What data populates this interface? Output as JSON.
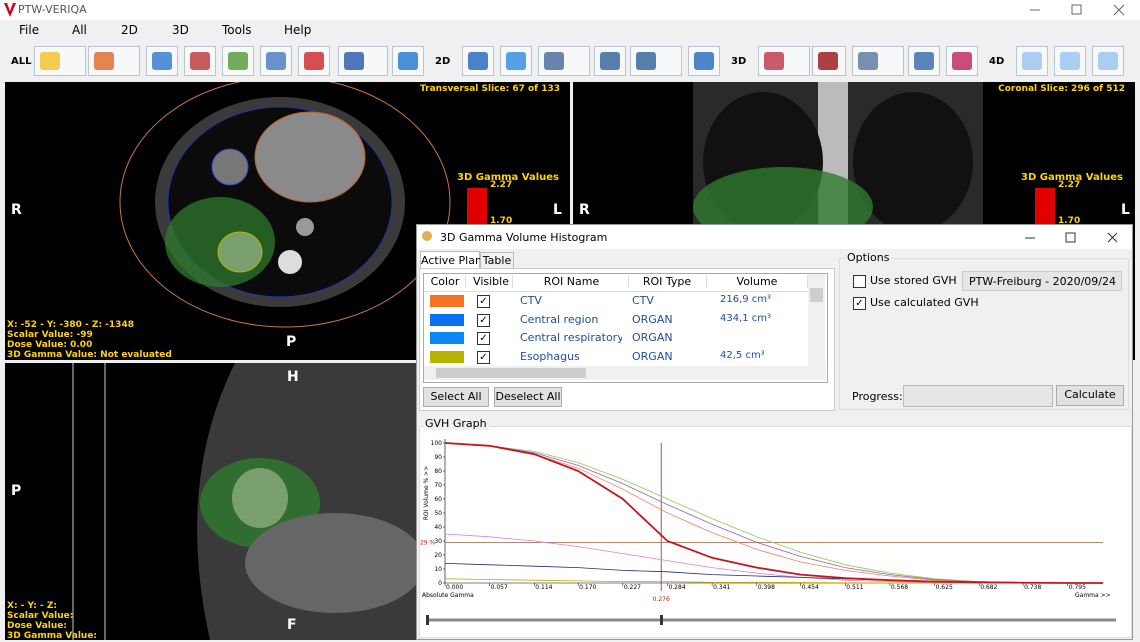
{
  "window": {
    "title": "PTW-VERIQA"
  },
  "menu": [
    "File",
    "All",
    "2D",
    "3D",
    "Tools",
    "Help"
  ],
  "toolbar": {
    "labels": [
      "ALL",
      "2D",
      "3D",
      "4D"
    ]
  },
  "viewers": [
    {
      "slice": "Transversal Slice: 67 of 133",
      "gamma_title": "3D Gamma Values",
      "gamma_max": "2.27",
      "gamma_mid": "1.70",
      "orientation": [
        "R",
        "L",
        "P"
      ],
      "info": [
        "X: -52 - Y: -380 - Z: -1348",
        "Scalar Value: -99",
        "Dose Value: 0.00",
        "3D Gamma Value: Not evaluated"
      ]
    },
    {
      "slice": "Coronal Slice: 296 of 512",
      "gamma_title": "3D Gamma Values",
      "gamma_max": "2.27",
      "gamma_mid": "1.70",
      "orientation": [
        "R",
        "L"
      ]
    },
    {
      "orientation": [
        "H",
        "P",
        "F"
      ],
      "info": [
        "X: - Y: - Z:",
        "Scalar Value:",
        "Dose Value:",
        "3D Gamma Value:"
      ]
    }
  ],
  "dialog": {
    "title": "3D Gamma Volume Histogram",
    "tabs": [
      "Active Plan",
      "Table"
    ],
    "table": {
      "columns": [
        "Color",
        "Visible",
        "ROI Name",
        "ROI Type",
        "Volume"
      ],
      "rows": [
        {
          "color": "#f47321",
          "visible": true,
          "name": "CTV",
          "type": "CTV",
          "volume": "216,9 cm³"
        },
        {
          "color": "#0a70f0",
          "visible": true,
          "name": "Central region",
          "type": "ORGAN",
          "volume": "434,1 cm³"
        },
        {
          "color": "#0a86f5",
          "visible": true,
          "name": "Central respiratory tra",
          "type": "ORGAN"
        },
        {
          "color": "#b5b500",
          "visible": true,
          "name": "Esophagus",
          "type": "ORGAN",
          "volume": "42,5 cm³"
        }
      ]
    },
    "buttons": [
      "Select All",
      "Deselect All"
    ],
    "options": {
      "title": "Options",
      "use_stored": {
        "label": "Use stored GVH",
        "checked": false
      },
      "source": "PTW-Freiburg - 2020/09/24",
      "use_calculated": {
        "label": "Use calculated GVH",
        "checked": true
      },
      "progress": "Progress:",
      "calculate": "Calculate"
    },
    "graph_title": "GVH Graph"
  },
  "chart_data": {
    "type": "line",
    "y_label": "ROI Volume % >>",
    "x_label": "Absolute Gamma",
    "x_end_label": "Gamma >>",
    "xlim": [
      0,
      0.84
    ],
    "ylim": [
      0,
      100
    ],
    "yticks": [
      0,
      10,
      20,
      30,
      40,
      50,
      60,
      70,
      80,
      90,
      100
    ],
    "xticks": [
      {
        "value": 0,
        "label": "0.000"
      },
      {
        "value": 0.057,
        "label": "0.057"
      },
      {
        "value": 0.114,
        "label": "0.114"
      },
      {
        "value": 0.17,
        "label": "0.170"
      },
      {
        "value": 0.227,
        "label": "0.227"
      },
      {
        "value": 0.284,
        "label": "0.284"
      },
      {
        "value": 0.341,
        "label": "0.341"
      },
      {
        "value": 0.398,
        "label": "0.398"
      },
      {
        "value": 0.454,
        "label": "0.454"
      },
      {
        "value": 0.511,
        "label": "0.511"
      },
      {
        "value": 0.568,
        "label": "0.568"
      },
      {
        "value": 0.625,
        "label": "0.625"
      },
      {
        "value": 0.682,
        "label": "0.682"
      },
      {
        "value": 0.738,
        "label": "0.738"
      },
      {
        "value": 0.795,
        "label": "0.795"
      }
    ],
    "threshold_y": {
      "value": 29,
      "label": "29 %"
    },
    "threshold_x": {
      "value": 0.276,
      "label": "0.276"
    },
    "x": [
      0,
      0.057,
      0.114,
      0.17,
      0.227,
      0.284,
      0.341,
      0.398,
      0.454,
      0.511,
      0.568,
      0.625,
      0.682,
      0.738,
      0.795,
      0.84
    ],
    "series": [
      {
        "color": "#88cc55",
        "values": [
          100,
          98,
          94,
          86,
          74,
          60,
          46,
          33,
          22,
          13,
          7,
          3,
          1,
          0.3,
          0,
          0
        ]
      },
      {
        "color": "#9a5fb0",
        "values": [
          100,
          98,
          93,
          84,
          71,
          56,
          42,
          29,
          19,
          11,
          6,
          2.5,
          1,
          0.3,
          0,
          0
        ]
      },
      {
        "color": "#f08060",
        "values": [
          100,
          98,
          92,
          82,
          67,
          50,
          36,
          24,
          15,
          9,
          5,
          2,
          1,
          0.3,
          0,
          0
        ]
      },
      {
        "color": "#e080d0",
        "values": [
          35,
          33,
          30,
          26,
          21,
          16,
          11,
          7,
          4,
          2,
          1,
          0.5,
          0.2,
          0,
          0,
          0
        ]
      },
      {
        "color": "#202a70",
        "values": [
          14,
          13,
          12,
          11,
          9,
          8,
          6,
          5,
          4,
          3,
          2,
          1,
          0.5,
          0.2,
          0,
          0
        ]
      },
      {
        "color": "#c0b000",
        "values": [
          3,
          2.5,
          2,
          1.5,
          1,
          1,
          0.5,
          0.5,
          0.3,
          0.2,
          0.1,
          0,
          0,
          0,
          0,
          0
        ]
      },
      {
        "color": "#c8141e",
        "values": [
          100,
          98,
          92,
          80,
          60,
          30,
          18,
          11,
          6,
          3.5,
          2,
          1,
          0.5,
          0.2,
          0,
          0
        ]
      }
    ]
  }
}
